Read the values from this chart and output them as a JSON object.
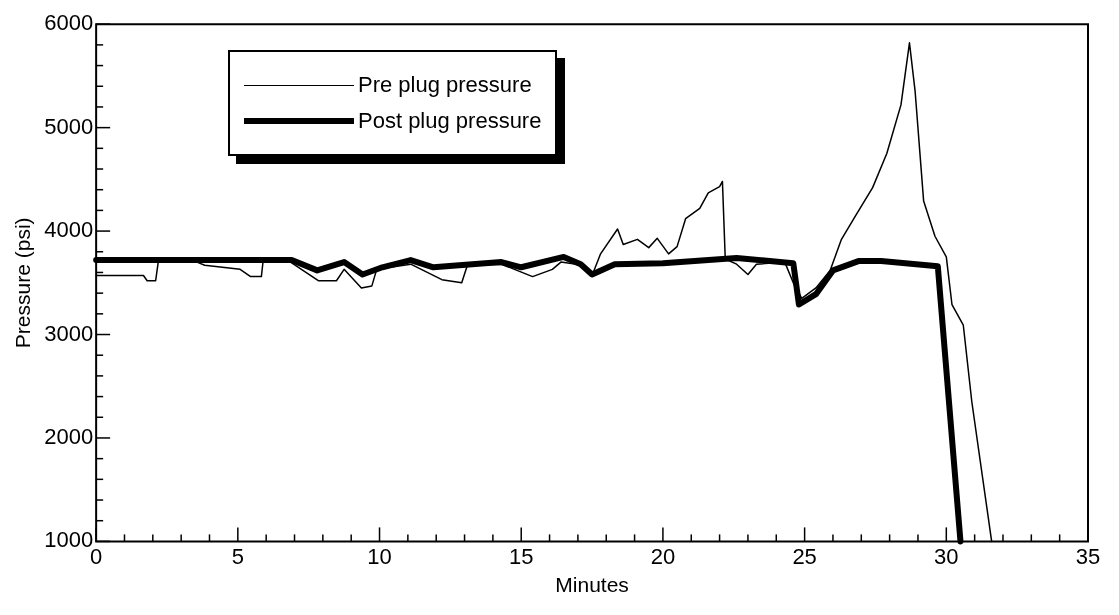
{
  "chart_data": {
    "type": "line",
    "xlabel": "Minutes",
    "ylabel": "Pressure (psi)",
    "xlim": [
      0,
      35
    ],
    "ylim": [
      1000,
      6000
    ],
    "xticks": [
      0,
      5,
      10,
      15,
      20,
      25,
      30,
      35
    ],
    "yticks": [
      1000,
      2000,
      3000,
      4000,
      5000,
      6000
    ],
    "grid": false,
    "legend": "top left",
    "marker": "none",
    "line_style": "solid",
    "series": [
      {
        "name": "Pre plug pressure",
        "color": "#000000",
        "x": [
          0,
          1.67,
          1.8,
          2.0,
          2.1,
          2.2,
          3.56,
          3.83,
          5.08,
          5.45,
          5.83,
          5.9,
          6.86,
          7.84,
          8.48,
          8.75,
          9.36,
          9.73,
          9.9,
          11.1,
          12.2,
          12.9,
          13.1,
          14.3,
          15.4,
          16.1,
          16.4,
          17.2,
          17.5,
          17.8,
          18.4,
          18.6,
          19.1,
          19.5,
          19.8,
          20.2,
          20.5,
          20.8,
          21.3,
          21.6,
          22.0,
          22.1,
          22.2,
          22.6,
          23.0,
          23.3,
          24.3,
          24.6,
          24.9,
          25.4,
          25.9,
          26.3,
          26.8,
          27.4,
          27.9,
          28.4,
          28.7,
          28.9,
          29.2,
          29.6,
          30.0,
          30.2,
          30.6,
          30.9,
          31.6
        ],
        "values": [
          3570,
          3570,
          3520,
          3520,
          3520,
          3720,
          3700,
          3670,
          3630,
          3560,
          3560,
          3730,
          3700,
          3520,
          3520,
          3630,
          3450,
          3470,
          3630,
          3680,
          3530,
          3500,
          3670,
          3680,
          3560,
          3630,
          3700,
          3670,
          3570,
          3780,
          4020,
          3870,
          3920,
          3840,
          3930,
          3780,
          3850,
          4120,
          4220,
          4370,
          4430,
          4480,
          3730,
          3680,
          3580,
          3680,
          3700,
          3500,
          3350,
          3450,
          3620,
          3920,
          4150,
          4420,
          4750,
          5220,
          5820,
          5350,
          4290,
          3950,
          3750,
          3290,
          3090,
          2350,
          1000
        ]
      },
      {
        "name": "Post plug pressure",
        "color": "#000000",
        "x": [
          0,
          6.9,
          7.8,
          8.75,
          9.4,
          10.1,
          11.1,
          11.9,
          14.3,
          15,
          16.5,
          17.1,
          17.5,
          18.3,
          20,
          22.6,
          24.6,
          24.8,
          25.4,
          26.0,
          26.9,
          27.7,
          29.7,
          30.5
        ],
        "values": [
          3720,
          3720,
          3620,
          3700,
          3580,
          3650,
          3720,
          3650,
          3700,
          3650,
          3750,
          3680,
          3580,
          3680,
          3690,
          3740,
          3690,
          3290,
          3390,
          3620,
          3710,
          3710,
          3660,
          1000
        ]
      }
    ]
  }
}
